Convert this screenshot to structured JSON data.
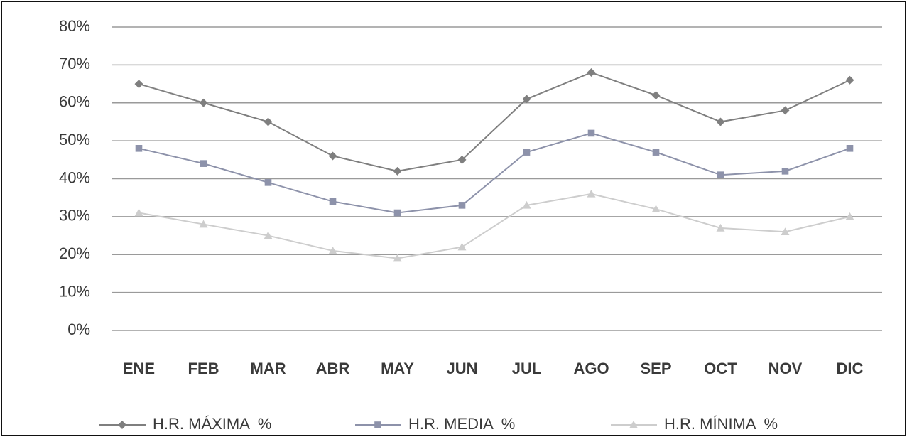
{
  "chart_data": {
    "type": "line",
    "categories": [
      "ENE",
      "FEB",
      "MAR",
      "ABR",
      "MAY",
      "JUN",
      "JUL",
      "AGO",
      "SEP",
      "OCT",
      "NOV",
      "DIC"
    ],
    "series": [
      {
        "name": "H.R. MÁXIMA  %",
        "color": "#7f7f7f",
        "marker": "diamond",
        "values": [
          65,
          60,
          55,
          46,
          42,
          45,
          61,
          68,
          62,
          55,
          58,
          66
        ]
      },
      {
        "name": "H.R. MEDIA  %",
        "color": "#8d92aa",
        "marker": "square",
        "values": [
          48,
          44,
          39,
          34,
          31,
          33,
          47,
          52,
          47,
          41,
          42,
          48
        ]
      },
      {
        "name": "H.R. MÍNIMA  %",
        "color": "#cdcdcd",
        "marker": "triangle",
        "values": [
          31,
          28,
          25,
          21,
          19,
          22,
          33,
          36,
          32,
          27,
          26,
          30
        ]
      }
    ],
    "ylim": [
      0,
      80
    ],
    "yticks": [
      {
        "value": 0,
        "label": "0%"
      },
      {
        "value": 10,
        "label": "10%"
      },
      {
        "value": 20,
        "label": "20%"
      },
      {
        "value": 30,
        "label": "30%"
      },
      {
        "value": 40,
        "label": "40%"
      },
      {
        "value": 50,
        "label": "50%"
      },
      {
        "value": 60,
        "label": "60%"
      },
      {
        "value": 70,
        "label": "70%"
      },
      {
        "value": 80,
        "label": "80%"
      }
    ],
    "grid": true,
    "legend": "bottom"
  }
}
